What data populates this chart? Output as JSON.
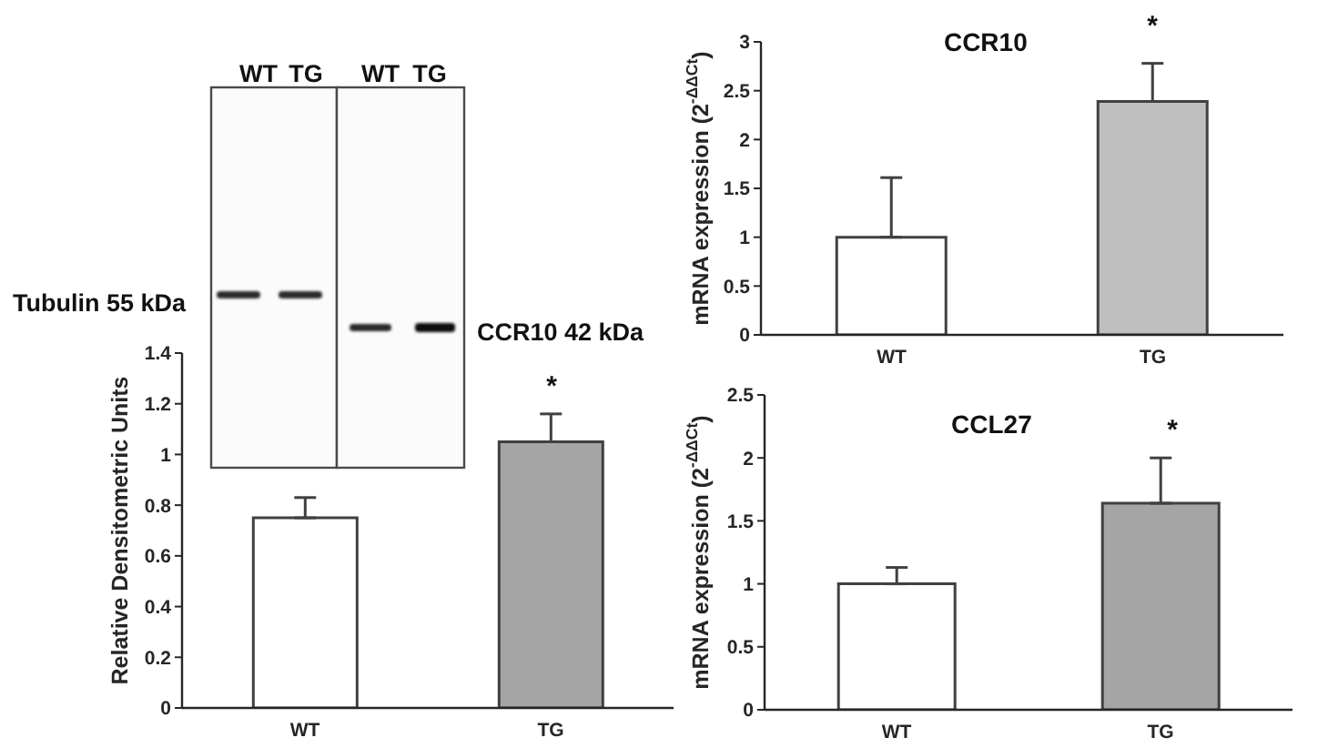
{
  "chart_data": [
    {
      "type": "bar",
      "ylabel": "Relative Densitometric Units",
      "categories": [
        "WT",
        "TG"
      ],
      "values": [
        0.75,
        1.05
      ],
      "colors": [
        "#ffffff",
        "#a5a5a5"
      ],
      "errors": [
        [
          0.75,
          0.83
        ],
        [
          1.05,
          1.16
        ]
      ],
      "ylim": [
        0,
        1.4
      ],
      "yticks": [
        0,
        0.2,
        0.4,
        0.6,
        0.8,
        1,
        1.2,
        1.4
      ],
      "annotations": [
        "WT",
        "TG",
        "WT",
        "TG",
        "Tubulin 55 kDa",
        "CCR10 42 kDa",
        "*"
      ]
    },
    {
      "type": "bar",
      "title": "CCR10",
      "ylabel": "mRNA expression (2$^{-ΔΔCt}$)",
      "categories": [
        "WT",
        "TG"
      ],
      "values": [
        1,
        2.39
      ],
      "colors": [
        "#ffffff",
        "#bfbfbf"
      ],
      "errors": [
        [
          1,
          1.61
        ],
        [
          2.39,
          2.78
        ]
      ],
      "ylim": [
        0,
        3
      ],
      "yticks": [
        0,
        0.5,
        1,
        1.5,
        2,
        2.5,
        3
      ],
      "annotations": [
        "*"
      ]
    },
    {
      "type": "bar",
      "title": "CCL27",
      "ylabel": "mRNA expression (2$^{-ΔΔCt}$)",
      "categories": [
        "WT",
        "TG"
      ],
      "values": [
        1,
        1.64
      ],
      "colors": [
        "#ffffff",
        "#a5a5a5"
      ],
      "errors": [
        [
          1,
          1.13
        ],
        [
          1.64,
          2
        ]
      ],
      "ylim": [
        0,
        2.5
      ],
      "yticks": [
        0,
        0.5,
        1,
        1.5,
        2,
        2.5
      ],
      "annotations": [
        "*"
      ]
    }
  ]
}
